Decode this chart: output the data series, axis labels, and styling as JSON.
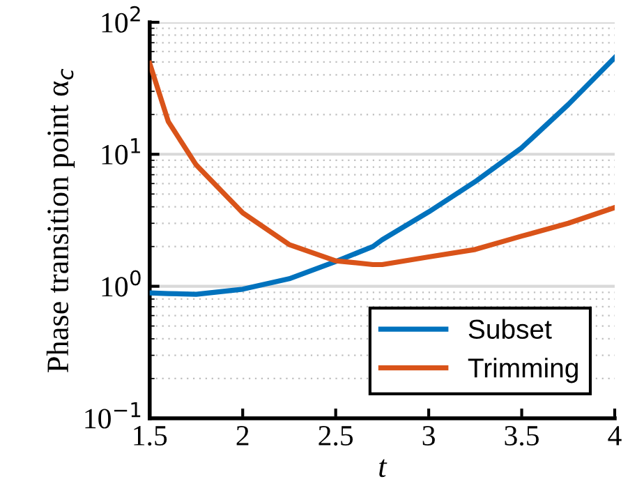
{
  "chart_data": {
    "type": "line",
    "xlabel": "t",
    "ylabel": "Phase transition point α$_{c}$",
    "log": "y",
    "grid": "y",
    "legend": "bottom right",
    "xlim": [
      1.5,
      4
    ],
    "xticks": [
      1.5,
      2,
      2.5,
      3,
      3.5,
      4
    ],
    "ylim": [
      0.1,
      100
    ],
    "yticks": [
      {
        "value": 0.1,
        "label": "10$^{−1}$"
      },
      {
        "value": 1,
        "label": "10$^{0}$"
      },
      {
        "value": 10,
        "label": "10$^{1}$"
      },
      {
        "value": 100,
        "label": "10$^{2}$"
      }
    ],
    "x": [
      1.5,
      1.6,
      1.75,
      2.0,
      2.25,
      2.5,
      2.7,
      2.75,
      3.0,
      3.25,
      3.5,
      3.75,
      4.0
    ],
    "series": [
      {
        "name": "Subset",
        "color": "#0072bd",
        "values": [
          0.89,
          0.88,
          0.87,
          0.95,
          1.14,
          1.54,
          2.0,
          2.25,
          3.66,
          6.2,
          11.2,
          23.8,
          54
        ]
      },
      {
        "name": "Trimming",
        "color": "#d95319",
        "values": [
          48.9,
          17.7,
          8.3,
          3.6,
          2.07,
          1.56,
          1.46,
          1.46,
          1.67,
          1.9,
          2.4,
          3.0,
          3.95
        ]
      }
    ]
  }
}
